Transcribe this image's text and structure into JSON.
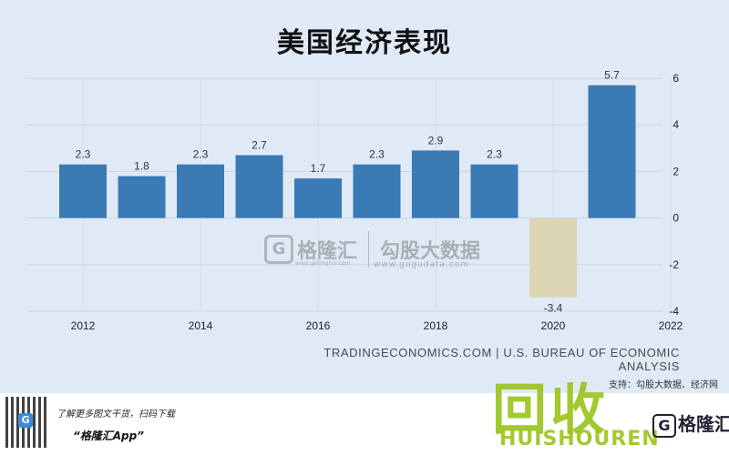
{
  "chart_data": {
    "type": "bar",
    "title": "美国经济表现",
    "categories": [
      "2012",
      "2013",
      "2014",
      "2015",
      "2016",
      "2017",
      "2018",
      "2019",
      "2020",
      "2021"
    ],
    "values": [
      2.3,
      1.8,
      2.3,
      2.7,
      1.7,
      2.3,
      2.9,
      2.3,
      -3.4,
      5.7
    ],
    "data_labels": [
      "2.3",
      "1.8",
      "2.3",
      "2.7",
      "1.7",
      "2.3",
      "2.9",
      "2.3",
      "-3.4",
      "5.7"
    ],
    "x_ticks": [
      "2012",
      "2014",
      "2016",
      "2018",
      "2020",
      "2022"
    ],
    "y_ticks": [
      -4,
      -2,
      0,
      2,
      4,
      6
    ],
    "ylim": [
      -4,
      6
    ],
    "xlabel": "",
    "ylabel": "",
    "y_axis_side": "right",
    "grid": true,
    "bar_color": "#3a7ab5",
    "negative_bar_color": "#dcd6b4"
  },
  "source": "TRADINGECONOMICS.COM  |  U.S. BUREAU OF ECONOMIC ANALYSIS",
  "support_text": "支持：勾股大数据、经济网",
  "watermark": {
    "brand_cn": "格隆汇",
    "brand_url": "www.gelonghui.com",
    "partner_cn": "勾股大数据",
    "partner_url": "www.gogudata.com",
    "qr_badge": "G"
  },
  "footer": {
    "line1": "了解更多图文干货，扫码下载",
    "line2": "“格隆汇App”",
    "big_cn": "回收",
    "big_en": "HUISHOUREN",
    "logo_cn": "格隆汇",
    "logo_letter": "G"
  }
}
